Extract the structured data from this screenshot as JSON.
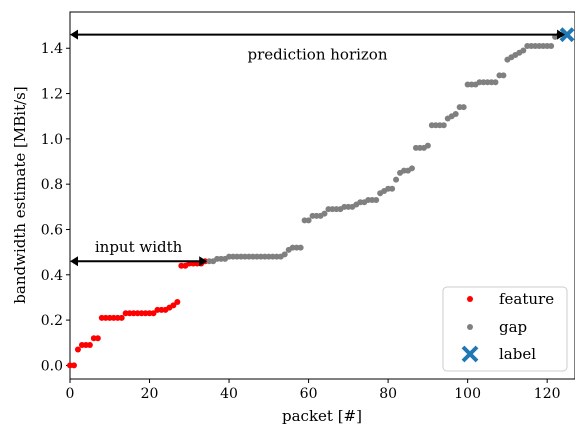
{
  "chart_data": {
    "type": "scatter",
    "xlabel": "packet [#]",
    "ylabel": "bandwidth estimate [MBit/s]",
    "xlim": [
      0,
      127
    ],
    "ylim": [
      -0.06,
      1.56
    ],
    "x_ticks": [
      0,
      20,
      40,
      60,
      80,
      100,
      120
    ],
    "y_ticks": [
      0.0,
      0.2,
      0.4,
      0.6,
      0.8,
      1.0,
      1.2,
      1.4
    ],
    "x_tick_labels": [
      "0",
      "20",
      "40",
      "60",
      "80",
      "100",
      "120"
    ],
    "y_tick_labels": [
      "0.0",
      "0.2",
      "0.4",
      "0.6",
      "0.8",
      "1.0",
      "1.2",
      "1.4"
    ],
    "grid": false,
    "legend_position": "bottom-right",
    "series": [
      {
        "name": "feature",
        "color": "#ff0000",
        "marker": "circle",
        "x": [
          0,
          1,
          2,
          3,
          4,
          5,
          6,
          7,
          8,
          9,
          10,
          11,
          12,
          13,
          14,
          15,
          16,
          17,
          18,
          19,
          20,
          21,
          22,
          23,
          24,
          25,
          26,
          27,
          28,
          29,
          30,
          31,
          32,
          33,
          34
        ],
        "y": [
          0.0,
          0.0,
          0.07,
          0.09,
          0.09,
          0.09,
          0.12,
          0.12,
          0.21,
          0.21,
          0.21,
          0.21,
          0.21,
          0.21,
          0.23,
          0.23,
          0.23,
          0.23,
          0.23,
          0.23,
          0.23,
          0.23,
          0.245,
          0.245,
          0.245,
          0.255,
          0.265,
          0.28,
          0.44,
          0.44,
          0.45,
          0.45,
          0.45,
          0.45,
          0.46
        ]
      },
      {
        "name": "gap",
        "color": "#808080",
        "marker": "circle",
        "x": [
          35,
          36,
          37,
          38,
          39,
          40,
          41,
          42,
          43,
          44,
          45,
          46,
          47,
          48,
          49,
          50,
          51,
          52,
          53,
          54,
          55,
          56,
          57,
          58,
          59,
          60,
          61,
          62,
          63,
          64,
          65,
          66,
          67,
          68,
          69,
          70,
          71,
          72,
          73,
          74,
          75,
          76,
          77,
          78,
          79,
          80,
          81,
          82,
          83,
          84,
          85,
          86,
          87,
          88,
          89,
          90,
          91,
          92,
          93,
          94,
          95,
          96,
          97,
          98,
          99,
          100,
          101,
          102,
          103,
          104,
          105,
          106,
          107,
          108,
          109,
          110,
          111,
          112,
          113,
          114,
          115,
          116,
          117,
          118,
          119,
          120,
          121,
          122,
          123,
          124
        ],
        "y": [
          0.46,
          0.46,
          0.47,
          0.47,
          0.47,
          0.48,
          0.48,
          0.48,
          0.48,
          0.48,
          0.48,
          0.48,
          0.48,
          0.48,
          0.48,
          0.48,
          0.48,
          0.48,
          0.48,
          0.49,
          0.51,
          0.52,
          0.52,
          0.52,
          0.64,
          0.64,
          0.66,
          0.66,
          0.66,
          0.67,
          0.69,
          0.69,
          0.69,
          0.69,
          0.7,
          0.7,
          0.7,
          0.71,
          0.72,
          0.72,
          0.73,
          0.73,
          0.73,
          0.76,
          0.77,
          0.78,
          0.78,
          0.82,
          0.85,
          0.86,
          0.86,
          0.87,
          0.96,
          0.96,
          0.96,
          0.97,
          1.06,
          1.06,
          1.06,
          1.06,
          1.09,
          1.1,
          1.11,
          1.14,
          1.14,
          1.24,
          1.24,
          1.24,
          1.25,
          1.25,
          1.25,
          1.25,
          1.25,
          1.28,
          1.28,
          1.35,
          1.36,
          1.37,
          1.38,
          1.39,
          1.41,
          1.41,
          1.41,
          1.41,
          1.41,
          1.41,
          1.41,
          1.45,
          1.46,
          1.46
        ]
      },
      {
        "name": "label",
        "color": "#1f77b4",
        "marker": "x",
        "x": [
          125
        ],
        "y": [
          1.46
        ]
      }
    ],
    "annotations": [
      {
        "text": "prediction horizon",
        "from_x": 0,
        "to_x": 124.5,
        "y": 1.46
      },
      {
        "text": "input width",
        "from_x": 0,
        "to_x": 34.5,
        "y": 0.46
      }
    ]
  }
}
